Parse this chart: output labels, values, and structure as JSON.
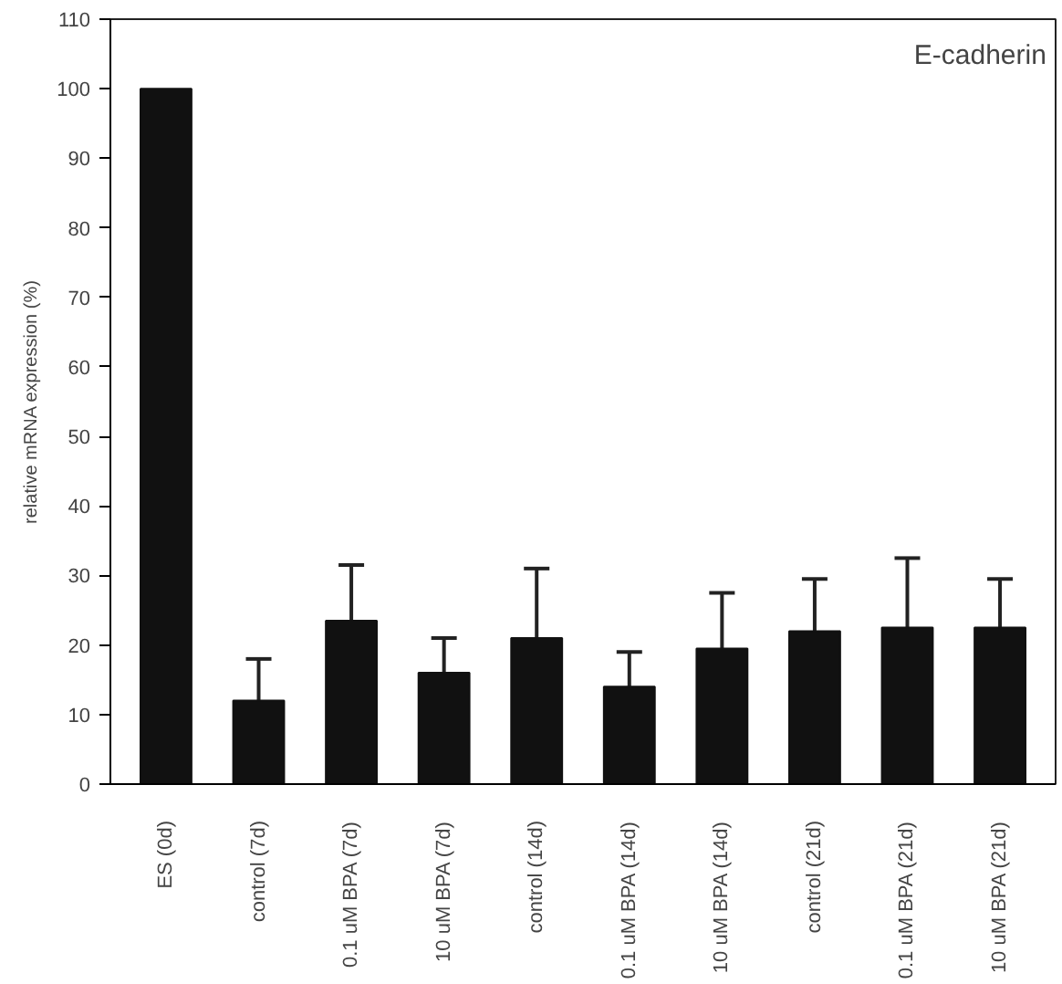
{
  "chart_data": {
    "type": "bar",
    "ylabel": "relative mRNA expression (%)",
    "annotations": [
      "E-cadherin"
    ],
    "categories": [
      "ES (0d)",
      "control (7d)",
      "0.1 uM BPA (7d)",
      "10 uM BPA (7d)",
      "control (14d)",
      "0.1 uM BPA (14d)",
      "10 uM BPA (14d)",
      "control (21d)",
      "0.1 uM BPA (21d)",
      "10 uM BPA (21d)"
    ],
    "values": [
      100,
      12,
      23.5,
      16,
      21,
      14,
      19.5,
      22,
      22.5,
      22.5
    ],
    "errors": [
      null,
      [
        12,
        18
      ],
      [
        23.5,
        31.5
      ],
      [
        16,
        21
      ],
      [
        21,
        31
      ],
      [
        14,
        19
      ],
      [
        19.5,
        27.5
      ],
      [
        22,
        29.5
      ],
      [
        22.5,
        32.5
      ],
      [
        22.5,
        29.5
      ]
    ],
    "color": "#111111",
    "ylim": [
      0,
      110
    ],
    "yticks": [
      0,
      10,
      20,
      30,
      40,
      50,
      60,
      70,
      80,
      90,
      100,
      110
    ],
    "grid": false
  }
}
